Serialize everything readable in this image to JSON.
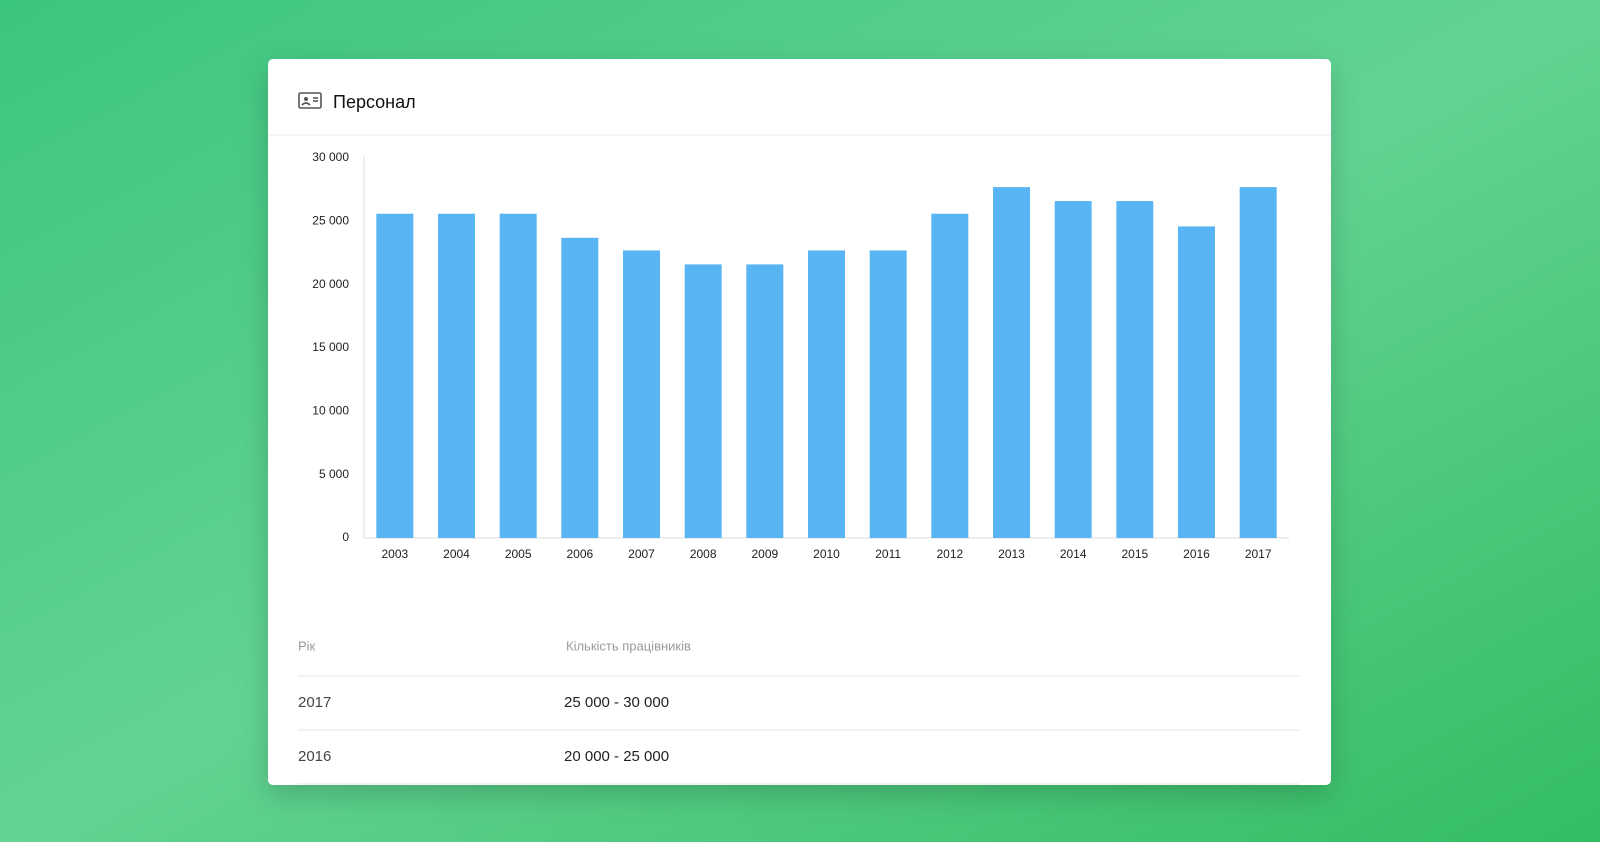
{
  "header": {
    "title": "Персонал"
  },
  "chart_data": {
    "type": "bar",
    "categories": [
      "2003",
      "2004",
      "2005",
      "2006",
      "2007",
      "2008",
      "2009",
      "2010",
      "2011",
      "2012",
      "2013",
      "2014",
      "2015",
      "2016",
      "2017"
    ],
    "values": [
      25600,
      25600,
      25600,
      23700,
      22700,
      21600,
      21600,
      22700,
      22700,
      25600,
      27700,
      26600,
      26600,
      24600,
      27700
    ],
    "color": "#58b4f2",
    "ylim": [
      0,
      30000
    ],
    "yticks": [
      0,
      {
        "value": 5000,
        "label": "5 000"
      },
      {
        "value": 10000,
        "label": "10 000"
      },
      {
        "value": 15000,
        "label": "15 000"
      },
      {
        "value": 20000,
        "label": "20 000"
      },
      {
        "value": 25000,
        "label": "25 000"
      },
      {
        "value": 30000,
        "label": "30 000"
      }
    ],
    "grid": false
  },
  "table": {
    "columns": [
      "Рік",
      "Кількість працівників"
    ],
    "rows": [
      [
        "2017",
        "25 000 - 30 000"
      ],
      [
        "2016",
        "20 000 - 25 000"
      ]
    ]
  }
}
